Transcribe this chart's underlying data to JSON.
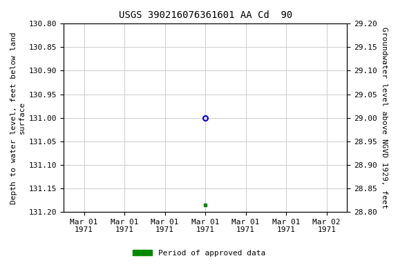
{
  "title": "USGS 390216076361601 AA Cd  90",
  "ylabel_left": "Depth to water level, feet below land\nsurface",
  "ylabel_right": "Groundwater level above NGVD 1929, feet",
  "ylim_left": [
    131.2,
    130.8
  ],
  "ylim_right": [
    28.8,
    29.2
  ],
  "yticks_left": [
    130.8,
    130.85,
    130.9,
    130.95,
    131.0,
    131.05,
    131.1,
    131.15,
    131.2
  ],
  "yticks_right": [
    28.8,
    28.85,
    28.9,
    28.95,
    29.0,
    29.05,
    29.1,
    29.15,
    29.2
  ],
  "xlim": [
    -0.5,
    6.5
  ],
  "xtick_positions": [
    0,
    1,
    2,
    3,
    4,
    5,
    6
  ],
  "xtick_labels": [
    "Mar 01\n1971",
    "Mar 01\n1971",
    "Mar 01\n1971",
    "Mar 01\n1971",
    "Mar 01\n1971",
    "Mar 01\n1971",
    "Mar 02\n1971"
  ],
  "data_point_x": 3,
  "data_point_y": 131.0,
  "approved_x": 3,
  "approved_y": 131.185,
  "point_color": "#0000cc",
  "approved_color": "#008800",
  "bg_color": "#ffffff",
  "grid_color": "#cccccc",
  "title_fontsize": 10,
  "label_fontsize": 8,
  "tick_fontsize": 8,
  "legend_label": "Period of approved data"
}
